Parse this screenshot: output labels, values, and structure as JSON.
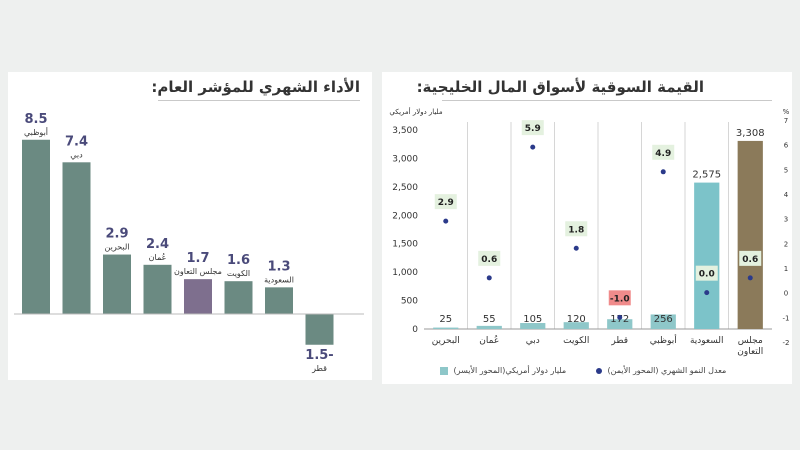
{
  "colors": {
    "bar_main": "#6b8a82",
    "bar_gcc_left": "#7e6f8e",
    "bar_market": "#8ec7c9",
    "bar_market_gcc": "#8b7a5a",
    "bar_market_saudi": "#7cc3c9",
    "dot": "#2b3a8a",
    "label_box": "#e4f1df",
    "label_box_neg": "#f08b8b",
    "value_text": "#4a4a7a"
  },
  "left_chart": {
    "title": "الأداء الشهري للمؤشر العام:",
    "chart_data": {
      "type": "bar",
      "categories": [
        "أبوظبي",
        "دبي",
        "البحرين",
        "عُمان",
        "مجلس التعاون",
        "الكويت",
        "السعودية",
        "قطر"
      ],
      "value_labels": [
        "8.5",
        "7.4",
        "2.9",
        "2.4",
        "1.7",
        "1.6",
        "1.3",
        "1.5-"
      ],
      "values": [
        8.5,
        7.4,
        2.9,
        2.4,
        1.7,
        1.6,
        1.3,
        -1.5
      ],
      "highlight_category": "مجلس التعاون"
    }
  },
  "right_chart": {
    "title": "القيمة السوقية لأسواق المال الخليجية:",
    "left_axis_label": "مليار دولار أمريكي",
    "right_axis_label": "%",
    "legend_bar": "مليار دولار أمريكي(المحور الأيسر)",
    "legend_dot": "معدل النمو الشهري (المحور الأيمن)",
    "chart_data": {
      "type": "bar",
      "categories": [
        "البحرين",
        "عُمان",
        "دبي",
        "الكويت",
        "قطر",
        "أبوظبي",
        "السعودية",
        "مجلس التعاون"
      ],
      "series": [
        {
          "name": "مليار دولار أمريكي(المحور الأيسر)",
          "values": [
            25,
            55,
            105,
            120,
            172,
            256,
            2575,
            3308
          ],
          "value_labels": [
            "25",
            "55",
            "105",
            "120",
            "172",
            "256",
            "2,575",
            "3,308"
          ]
        },
        {
          "name": "معدل النمو الشهري (المحور الأيمن)",
          "values": [
            2.9,
            0.6,
            5.9,
            1.8,
            -1.0,
            4.9,
            0.0,
            0.6
          ],
          "value_labels": [
            "2.9",
            "0.6",
            "5.9",
            "1.8",
            "-1.0",
            "4.9",
            "0.0",
            "0.6"
          ]
        }
      ],
      "y_left_ticks": [
        "0",
        "500",
        "1,000",
        "1,500",
        "2,000",
        "2,500",
        "3,000",
        "3,500"
      ],
      "y_left_values": [
        0,
        500,
        1000,
        1500,
        2000,
        2500,
        3000,
        3500
      ],
      "y_right_ticks": [
        "-2",
        "-1",
        "0",
        "1",
        "2",
        "3",
        "4",
        "5",
        "6",
        "7"
      ],
      "y_right_values": [
        -2,
        -1,
        0,
        1,
        2,
        3,
        4,
        5,
        6,
        7
      ],
      "ylim_left": [
        0,
        3500
      ],
      "ylim_right": [
        -2,
        7
      ],
      "category_lines": [
        [
          "البحرين"
        ],
        [
          "عُمان"
        ],
        [
          "دبي"
        ],
        [
          "الكويت"
        ],
        [
          "قطر"
        ],
        [
          "أبوظبي"
        ],
        [
          "السعودية"
        ],
        [
          "مجلس",
          "التعاون"
        ]
      ]
    }
  }
}
